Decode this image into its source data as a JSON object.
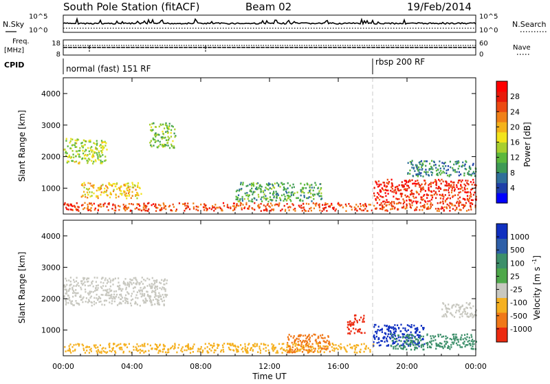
{
  "header": {
    "station": "South Pole Station (fitACF)",
    "beam": "Beam 02",
    "date": "19/Feb/2014"
  },
  "nsky_panel": {
    "left_label": "N.Sky",
    "right_label": "N.Search",
    "left_ticks": [
      "10^5",
      "10^0"
    ],
    "right_ticks": [
      "10^5",
      "10^0"
    ]
  },
  "freq_panel": {
    "left_label_1": "Freq.",
    "left_label_2": "[MHz]",
    "right_label": "Nave",
    "left_ticks": [
      "18",
      "8"
    ],
    "right_ticks": [
      "60",
      "0"
    ]
  },
  "cpid_panel": {
    "label": "CPID",
    "segments": [
      {
        "label": "normal (fast) 151 RF",
        "start_hour": 0
      },
      {
        "label": "rbsp 200 RF",
        "start_hour": 18.0
      }
    ]
  },
  "x_axis": {
    "label": "Time UT",
    "ticks": [
      "00:00",
      "04:00",
      "08:00",
      "12:00",
      "16:00",
      "20:00",
      "00:00"
    ],
    "range_hours": [
      0,
      24
    ]
  },
  "power_panel": {
    "ylabel": "Slant Range [km]",
    "yticks": [
      "1000",
      "2000",
      "3000",
      "4000"
    ],
    "colorbar_label": "Power [dB]",
    "colorbar_ticks": [
      "4",
      "8",
      "12",
      "16",
      "20",
      "24",
      "28"
    ],
    "colors": [
      "#0000ff",
      "#1e3fa8",
      "#2f6f9a",
      "#3e9a55",
      "#5cb83c",
      "#a8cf2e",
      "#f2e41c",
      "#f4b21a",
      "#f08018",
      "#ec4a12",
      "#e81a0a",
      "#ff0000"
    ]
  },
  "velocity_panel": {
    "ylabel": "Slant Range [km]",
    "yticks": [
      "1000",
      "2000",
      "3000",
      "4000"
    ],
    "colorbar_label": "Velocity [m s^-1]",
    "colorbar_ticks": [
      "1000",
      "500",
      "100",
      "25",
      "-25",
      "-100",
      "-500",
      "-1000"
    ],
    "colors": [
      "#1030c0",
      "#2e5fa8",
      "#3d8f6a",
      "#4ea84a",
      "#c8c8c0",
      "#f5b020",
      "#f07818",
      "#ec2a10"
    ]
  },
  "chart_data": [
    {
      "type": "heatmap",
      "title": "Power",
      "xlabel": "Time UT",
      "ylabel": "Slant Range [km]",
      "xlim": [
        0,
        24
      ],
      "ylim": [
        180,
        4500
      ],
      "colorbar": {
        "label": "Power [dB]",
        "range": [
          0,
          30
        ],
        "ticks": [
          4,
          8,
          12,
          16,
          20,
          24,
          28
        ]
      },
      "regions": [
        {
          "t": [
            0.0,
            24.0
          ],
          "r": [
            300,
            560
          ],
          "value": 24
        },
        {
          "t": [
            0.0,
            2.5
          ],
          "r": [
            1800,
            2600
          ],
          "value": 14
        },
        {
          "t": [
            1.0,
            4.5
          ],
          "r": [
            700,
            1200
          ],
          "value": 18
        },
        {
          "t": [
            5.0,
            6.5
          ],
          "r": [
            2300,
            3100
          ],
          "value": 12
        },
        {
          "t": [
            10.0,
            15.0
          ],
          "r": [
            600,
            1200
          ],
          "value": 10
        },
        {
          "t": [
            18.0,
            24.0
          ],
          "r": [
            550,
            1300
          ],
          "value": 26
        },
        {
          "t": [
            20.0,
            24.0
          ],
          "r": [
            1400,
            1900
          ],
          "value": 8
        }
      ]
    },
    {
      "type": "heatmap",
      "title": "Velocity",
      "xlabel": "Time UT",
      "ylabel": "Slant Range [km]",
      "xlim": [
        0,
        24
      ],
      "ylim": [
        180,
        4500
      ],
      "colorbar": {
        "label": "Velocity [m s^-1]",
        "ticks": [
          1000,
          500,
          100,
          25,
          -25,
          -100,
          -500,
          -1000
        ]
      },
      "regions": [
        {
          "t": [
            0.0,
            6.0
          ],
          "r": [
            1800,
            2700
          ],
          "value": 0
        },
        {
          "t": [
            0.0,
            18.0
          ],
          "r": [
            300,
            600
          ],
          "value": -100
        },
        {
          "t": [
            13.0,
            15.5
          ],
          "r": [
            300,
            900
          ],
          "value": -500
        },
        {
          "t": [
            16.5,
            17.5
          ],
          "r": [
            900,
            1500
          ],
          "value": -800
        },
        {
          "t": [
            18.0,
            21.0
          ],
          "r": [
            500,
            1200
          ],
          "value": 900
        },
        {
          "t": [
            19.0,
            24.0
          ],
          "r": [
            400,
            900
          ],
          "value": 300
        },
        {
          "t": [
            22.0,
            24.0
          ],
          "r": [
            1400,
            1900
          ],
          "value": 0
        }
      ]
    }
  ]
}
